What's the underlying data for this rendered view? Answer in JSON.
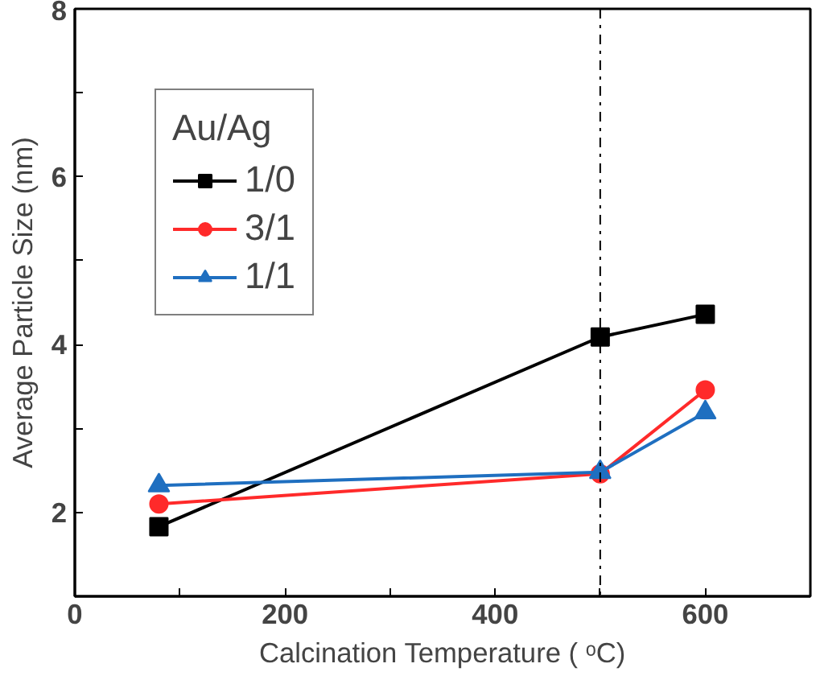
{
  "chart_data": {
    "type": "line",
    "xlabel": "Calcination Temperature ( ᵒC)",
    "ylabel": "Average Particle Size (nm)",
    "legend_title": "Au/Ag",
    "x": [
      80,
      500,
      600
    ],
    "series": [
      {
        "name": "1/0",
        "color": "#000000",
        "marker": "square",
        "values": [
          1.83,
          4.09,
          4.36
        ]
      },
      {
        "name": "3/1",
        "color": "#ff2a2a",
        "marker": "circle",
        "values": [
          2.1,
          2.46,
          3.46
        ]
      },
      {
        "name": "1/1",
        "color": "#1f6fc0",
        "marker": "triangle",
        "values": [
          2.32,
          2.48,
          3.19
        ]
      }
    ],
    "xlim": [
      0,
      700
    ],
    "ylim": [
      1,
      8
    ],
    "xticks": [
      0,
      {
        "value": 100,
        "label": null
      },
      200,
      {
        "value": 300,
        "label": null
      },
      400,
      {
        "value": 500,
        "label": null
      },
      600
    ],
    "yticks": [
      {
        "value": 1,
        "label": null
      },
      2,
      {
        "value": 3,
        "label": null
      },
      4,
      {
        "value": 5,
        "label": null
      },
      6,
      {
        "value": 7,
        "label": null
      },
      8
    ],
    "ref_lines": [
      {
        "axis": "x",
        "value": 500,
        "label": null,
        "color": "#000000",
        "line_style": "dashdot"
      }
    ],
    "grid": false,
    "legend": "top left"
  }
}
